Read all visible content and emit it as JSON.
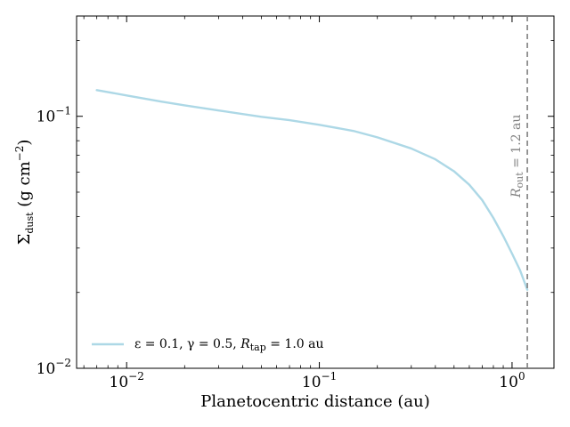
{
  "chart_data": {
    "type": "line",
    "xscale": "log",
    "yscale": "log",
    "xlim": [
      0.0055,
      1.65
    ],
    "ylim": [
      0.01,
      0.25
    ],
    "grid": false,
    "legend_placement": "lower-left",
    "xlabel": "Planetocentric distance (au)",
    "ylabel": {
      "base": "Σ",
      "base_sub": "dust",
      "unit_open": " (g cm",
      "unit_sup": "−2",
      "unit_close": ")"
    },
    "x_ticks": [
      {
        "value": 0.01,
        "base": "10",
        "exp": "−2"
      },
      {
        "value": 0.1,
        "base": "10",
        "exp": "−1"
      },
      {
        "value": 1.0,
        "base": "10",
        "exp": "0"
      }
    ],
    "y_ticks": [
      {
        "value": 0.01,
        "base": "10",
        "exp": "−2"
      },
      {
        "value": 0.1,
        "base": "10",
        "exp": "−1"
      }
    ],
    "series": [
      {
        "name": "ε = 0.1, γ = 0.5, R_tap = 1.0 au",
        "legend_parts": {
          "a": "ε = 0.1, γ = 0.5, ",
          "r": "R",
          "r_sub": "tap",
          "b": " = 1.0 au"
        },
        "color": "#add8e6",
        "x": [
          0.007,
          0.01,
          0.015,
          0.02,
          0.03,
          0.05,
          0.07,
          0.1,
          0.15,
          0.2,
          0.3,
          0.4,
          0.5,
          0.6,
          0.7,
          0.8,
          0.9,
          1.0,
          1.1,
          1.2
        ],
        "y": [
          0.127,
          0.121,
          0.1145,
          0.1105,
          0.1055,
          0.0995,
          0.0965,
          0.0925,
          0.0875,
          0.0825,
          0.0745,
          0.0675,
          0.0605,
          0.0535,
          0.0465,
          0.0395,
          0.0335,
          0.0285,
          0.0245,
          0.0205
        ]
      }
    ],
    "annotations": [
      {
        "type": "vline",
        "x": 1.2,
        "color": "#7f7f7f",
        "style": "dashed",
        "label_parts": {
          "r": "R",
          "r_sub": "out",
          "b": " = 1.2 au"
        }
      }
    ]
  }
}
